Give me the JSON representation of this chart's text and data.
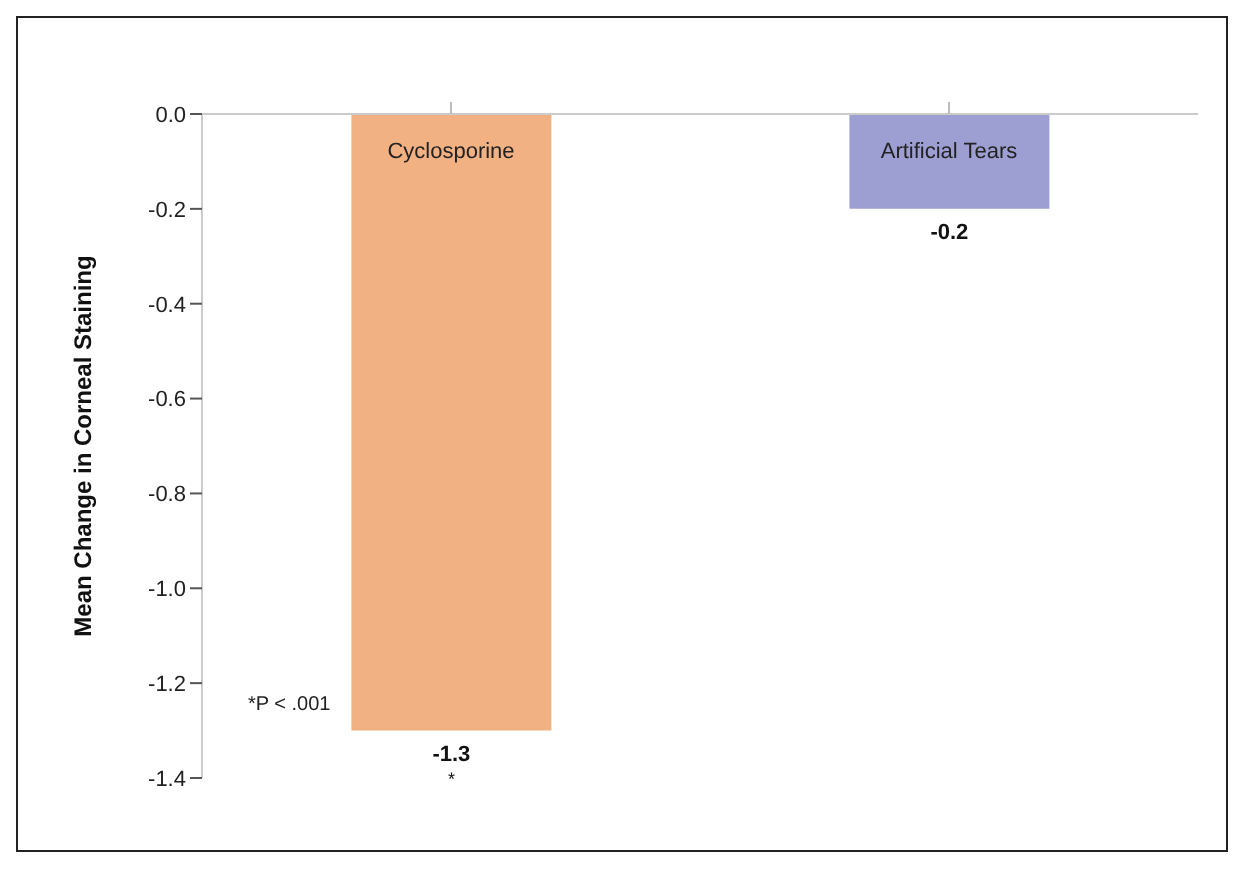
{
  "chart_data": {
    "type": "bar",
    "ylabel": "Mean Change in Corneal Staining",
    "categories": [
      "Cyclosporine",
      "Artificial Tears"
    ],
    "values": [
      -1.3,
      -0.2
    ],
    "colors": [
      "#f2b183",
      "#9d9fd3"
    ],
    "ylim": [
      -1.4,
      0
    ],
    "yticks": [
      {
        "value": 0,
        "label": "0.0"
      },
      -0.2,
      -0.4,
      -0.6,
      -0.8,
      {
        "value": -1,
        "label": "-1.0"
      },
      -1.2,
      -1.4
    ],
    "data_labels": true,
    "annotations": [
      "*P < .001",
      {
        "text": "*",
        "x": "Cyclosporine",
        "y": -1.3
      }
    ]
  }
}
